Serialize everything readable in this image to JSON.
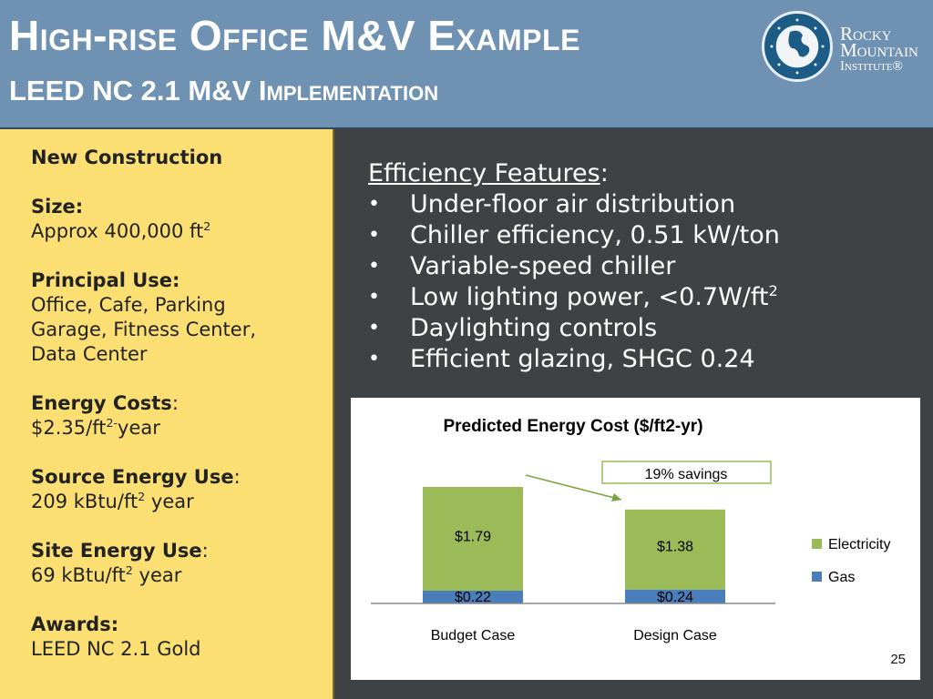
{
  "header": {
    "title": "High-rise Office M&V Example",
    "subtitle": "LEED NC 2.1 M&V Implementation",
    "logo_lines": [
      "Rocky",
      "Mountain",
      "Institute®"
    ]
  },
  "left_panel": {
    "category": "New Construction",
    "size_label": "Size:",
    "size_value": "Approx 400,000 ft",
    "size_sup": "2",
    "use_label": "Principal Use:",
    "use_value": "Office, Cafe, Parking\nGarage, Fitness Center,\nData Center",
    "costs_label": "Energy Costs",
    "costs_colon": ":",
    "costs_value_a": "$2.35/ft",
    "costs_sup": "2-",
    "costs_value_b": "year",
    "source_label": "Source Energy Use",
    "source_colon": ":",
    "source_value_a": "209 kBtu/ft",
    "source_sup": "2",
    "source_value_b": " year",
    "site_label": "Site Energy Use",
    "site_colon": ":",
    "site_value_a": "69 kBtu/ft",
    "site_sup": "2",
    "site_value_b": " year",
    "awards_label": "Awards:",
    "awards_value": "LEED NC 2.1 Gold"
  },
  "features": {
    "title": "Efficiency Features",
    "title_colon": ":",
    "items": [
      {
        "text": "Under-floor air distribution"
      },
      {
        "text": "Chiller efficiency, 0.51 kW/ton"
      },
      {
        "text": "Variable-speed chiller"
      },
      {
        "text": "Low lighting power, <0.7W/ft",
        "sup": "2"
      },
      {
        "text": "Daylighting controls"
      },
      {
        "text": "Efficient glazing, SHGC 0.24"
      }
    ]
  },
  "chart_data": {
    "type": "bar",
    "stacked": true,
    "title": "Predicted Energy Cost ($/ft2-yr)",
    "categories": [
      "Budget Case",
      "Design Case"
    ],
    "series": [
      {
        "name": "Gas",
        "values": [
          0.22,
          0.24
        ],
        "labels": [
          "$0.22",
          "$0.24"
        ],
        "color": "#4a7ebb"
      },
      {
        "name": "Electricity",
        "values": [
          1.79,
          1.38
        ],
        "labels": [
          "$1.79",
          "$1.38"
        ],
        "color": "#9bbb59"
      }
    ],
    "annotation": "19%  savings",
    "legend": "right"
  },
  "page_number": "25"
}
